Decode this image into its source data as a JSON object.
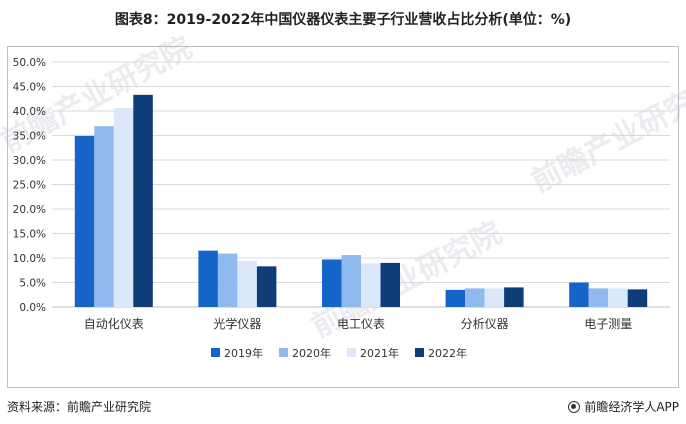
{
  "title": "图表8：2019-2022年中国仪器仪表主要子行业营收占比分析(单位：%)",
  "source": "资料来源：前瞻产业研究院",
  "brand": "前瞻经济学人APP",
  "watermark": "前瞻产业研究院",
  "colors": {
    "2019": "#1565c9",
    "2020": "#8fb9ef",
    "2021": "#dae8fa",
    "2022": "#0f3d7a",
    "grid": "#d9d9d9"
  },
  "chart_data": {
    "type": "bar",
    "title": "图表8：2019-2022年中国仪器仪表主要子行业营收占比分析(单位：%)",
    "categories": [
      "自动化仪表",
      "光学仪器",
      "电工仪表",
      "分析仪器",
      "电子测量"
    ],
    "series": [
      {
        "name": "2019年",
        "values": [
          34.9,
          11.5,
          9.7,
          3.5,
          5.0
        ]
      },
      {
        "name": "2020年",
        "values": [
          36.9,
          10.9,
          10.6,
          3.8,
          3.8
        ]
      },
      {
        "name": "2021年",
        "values": [
          40.6,
          9.4,
          8.9,
          3.8,
          3.8
        ]
      },
      {
        "name": "2022年",
        "values": [
          43.3,
          8.3,
          9.0,
          4.0,
          3.6
        ]
      }
    ],
    "ylim": [
      0,
      50
    ],
    "yticks": [
      "0.0%",
      "5.0%",
      "10.0%",
      "15.0%",
      "20.0%",
      "25.0%",
      "30.0%",
      "35.0%",
      "40.0%",
      "45.0%",
      "50.0%"
    ],
    "xlabel": "",
    "ylabel": "",
    "legend_position": "bottom"
  }
}
